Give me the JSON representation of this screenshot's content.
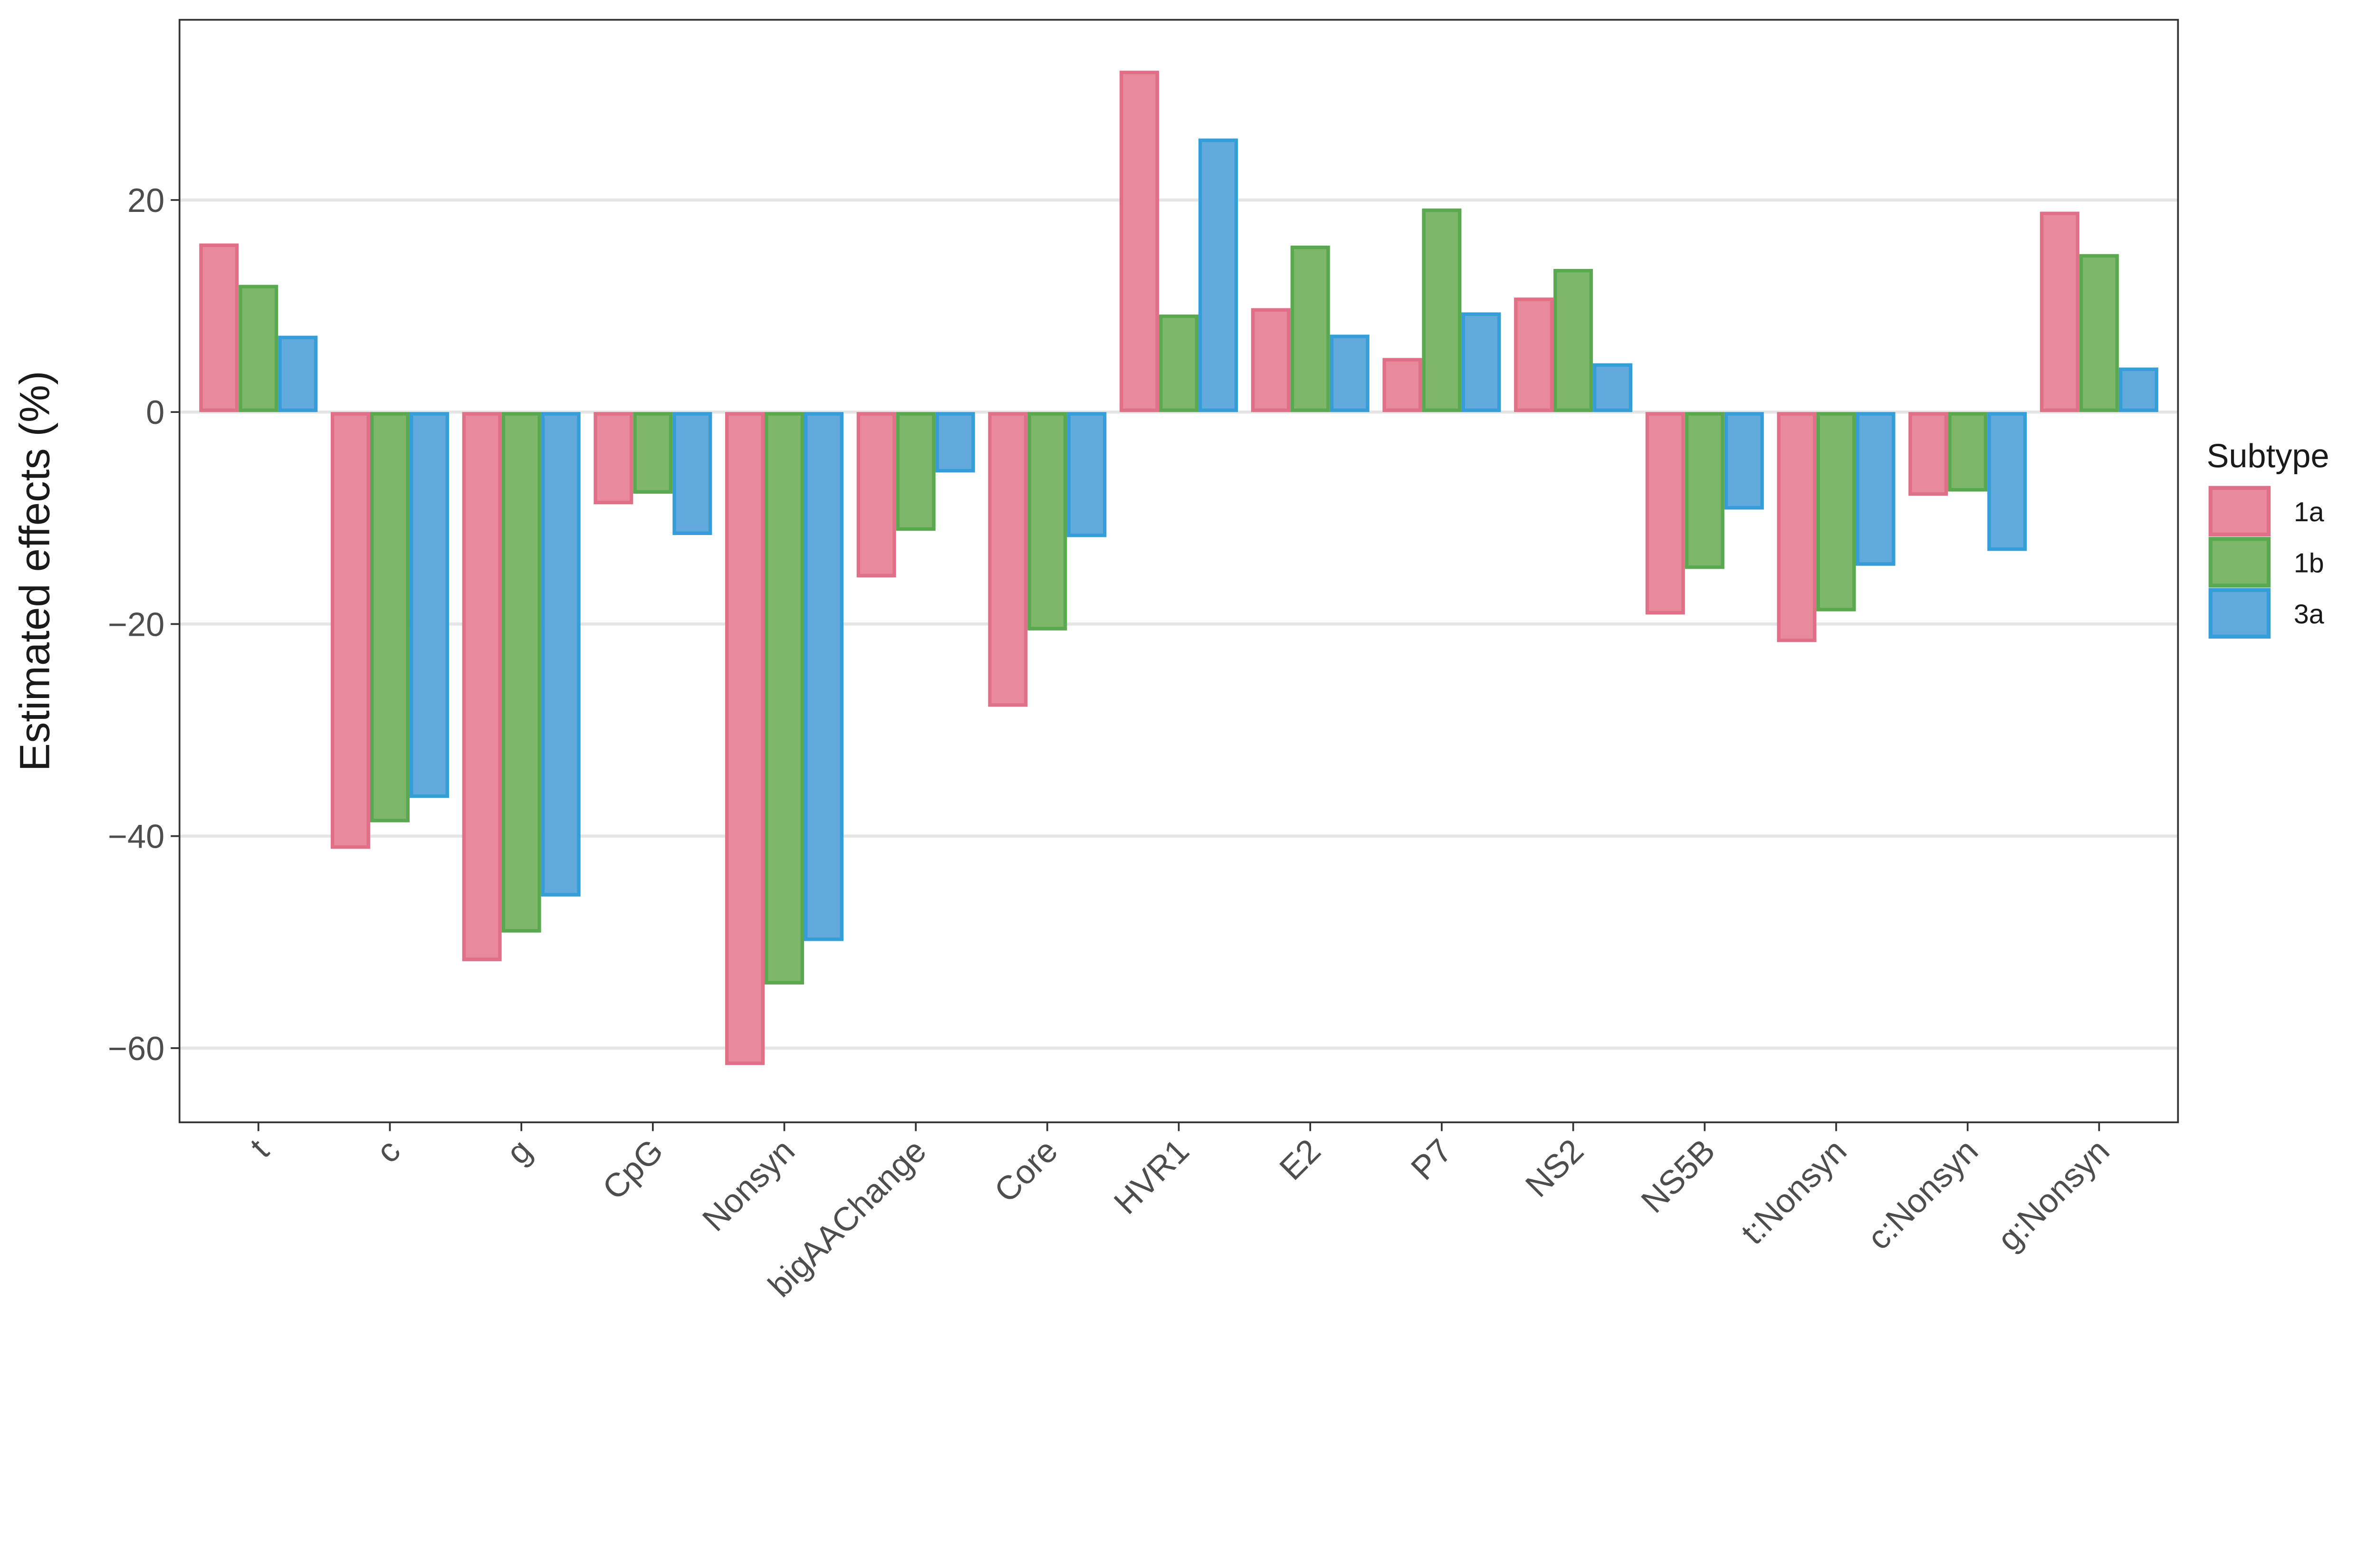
{
  "chart_data": {
    "type": "bar",
    "title": "",
    "xlabel": "",
    "ylabel": "Estimated effects (%)",
    "ylim": [
      -67,
      37
    ],
    "yticks": [
      20,
      0,
      -20,
      -40,
      -60
    ],
    "ytick_labels": [
      "20",
      "0",
      "−20",
      "−40",
      "−60"
    ],
    "grid": "horizontal major",
    "legend": {
      "title": "Subtype",
      "position": "right"
    },
    "categories": [
      "t",
      "c",
      "g",
      "CpG",
      "Nonsyn",
      "bigAAChange",
      "Core",
      "HVR1",
      "E2",
      "P7",
      "NS2",
      "NS5B",
      "t:Nonsyn",
      "c:Nonsyn",
      "g:Nonsyn"
    ],
    "series": [
      {
        "name": "1a",
        "fill": "#E88A9B",
        "stroke": "#E07088",
        "values": [
          15.9,
          -41.2,
          -51.8,
          -8.7,
          -61.6,
          -15.6,
          -27.8,
          32.2,
          9.8,
          5.1,
          10.8,
          -19.1,
          -21.7,
          -7.9,
          18.9
        ]
      },
      {
        "name": "1b",
        "fill": "#7EB66A",
        "stroke": "#5AA84F",
        "values": [
          12.0,
          -38.7,
          -49.1,
          -7.7,
          -54.0,
          -11.2,
          -20.6,
          9.2,
          15.7,
          19.2,
          13.5,
          -14.8,
          -18.8,
          -7.5,
          14.9
        ]
      },
      {
        "name": "3a",
        "fill": "#63AADC",
        "stroke": "#359DD8",
        "values": [
          7.2,
          -36.4,
          -45.7,
          -11.6,
          -49.9,
          -5.7,
          -11.8,
          25.8,
          7.3,
          9.4,
          4.6,
          -9.2,
          -14.5,
          -13.1,
          4.2
        ]
      }
    ]
  }
}
